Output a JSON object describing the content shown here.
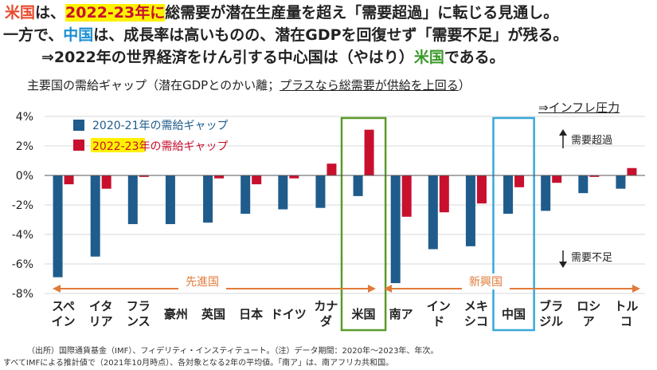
{
  "headline": {
    "line1": {
      "us": "米国",
      "a": "は、",
      "period": "2022-23年に",
      "b": "総需要が潜在生産量を超え「需要超過」に転じる見通し。"
    },
    "line2": {
      "a": "一方で、",
      "china": "中国",
      "b": "は、成長率は高いものの、潜在GDPを回復せず「需要不足」が残る。"
    },
    "line3": {
      "a": "⇒2022年の世界経済をけん引する中心国は（やはり）",
      "us": "米国",
      "b": "である。"
    }
  },
  "subtitle": {
    "prefix": "主要国の需給ギャップ（潜在GDPとのかい離；",
    "underline": "プラスなら総需要が供給を上回る",
    "suffix": "）"
  },
  "pressure_note": "⇒インフレ圧力",
  "colors": {
    "series1": "#1f5c8c",
    "series2": "#c8102e",
    "group_arrow": "#e07b39",
    "us_box": "#5a9a2a",
    "china_box": "#39a8d8"
  },
  "annotations": {
    "up": "需要超過",
    "down": "需要不足"
  },
  "groups": {
    "advanced": "先進国",
    "emerging": "新興国"
  },
  "legend": {
    "s1": "2020-21年の需給ギャップ",
    "s2_highlight": "2022-23年",
    "s2_rest": "の需給ギャップ"
  },
  "chart_data": {
    "type": "bar",
    "title": "主要国の需給ギャップ",
    "ylabel": "",
    "ylim": [
      -8,
      4
    ],
    "yticks": [
      "4%",
      "2%",
      "0%",
      "-2%",
      "-4%",
      "-6%",
      "-8%"
    ],
    "categories": [
      [
        "スペ",
        "イン"
      ],
      [
        "イタ",
        "リア"
      ],
      [
        "フラ",
        "ンス"
      ],
      [
        "豪州"
      ],
      [
        "英国"
      ],
      [
        "日本"
      ],
      [
        "ドイツ"
      ],
      [
        "カナ",
        "ダ"
      ],
      [
        "米国"
      ],
      [
        "南ア"
      ],
      [
        "イン",
        "ド"
      ],
      [
        "メキ",
        "シコ"
      ],
      [
        "中国"
      ],
      [
        "ブラ",
        "ジル"
      ],
      [
        "ロシ",
        "ア"
      ],
      [
        "トル",
        "コ"
      ]
    ],
    "series": [
      {
        "name": "2020-21年の需給ギャップ",
        "values": [
          -6.9,
          -5.5,
          -3.3,
          -3.3,
          -3.2,
          -2.6,
          -2.3,
          -2.2,
          -1.4,
          -7.3,
          -5.0,
          -4.8,
          -2.6,
          -2.4,
          -1.2,
          -0.9
        ]
      },
      {
        "name": "2022-23年の需給ギャップ",
        "values": [
          -0.6,
          -0.9,
          -0.1,
          0.0,
          -0.2,
          -0.6,
          -0.2,
          0.8,
          3.1,
          -2.8,
          -2.5,
          -1.9,
          -0.8,
          -0.5,
          -0.1,
          0.5
        ]
      }
    ]
  },
  "footnote": {
    "line1": "（出所）国際通貨基金（IMF）、フィデリティ・インスティテュート。（注）データ期間：2020年～2023年、年次。",
    "line2": "すべてIMFによる推計値で（2021年10月時点）、各対象となる2年の平均値。「南ア」は、南アフリカ共和国。"
  }
}
